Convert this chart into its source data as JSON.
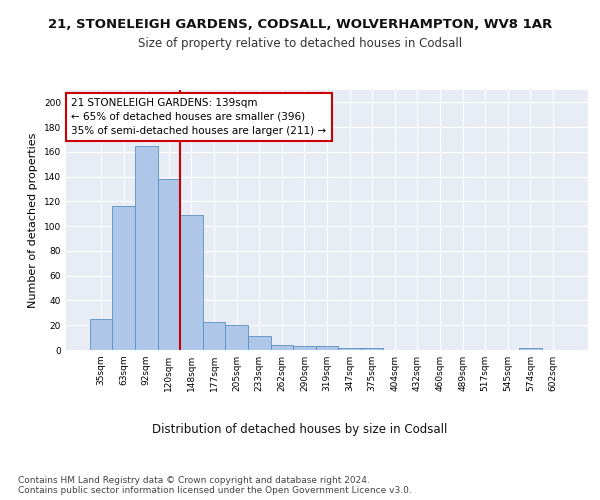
{
  "title_line1": "21, STONELEIGH GARDENS, CODSALL, WOLVERHAMPTON, WV8 1AR",
  "title_line2": "Size of property relative to detached houses in Codsall",
  "xlabel": "Distribution of detached houses by size in Codsall",
  "ylabel": "Number of detached properties",
  "bar_labels": [
    "35sqm",
    "63sqm",
    "92sqm",
    "120sqm",
    "148sqm",
    "177sqm",
    "205sqm",
    "233sqm",
    "262sqm",
    "290sqm",
    "319sqm",
    "347sqm",
    "375sqm",
    "404sqm",
    "432sqm",
    "460sqm",
    "489sqm",
    "517sqm",
    "545sqm",
    "574sqm",
    "602sqm"
  ],
  "bar_values": [
    25,
    116,
    165,
    138,
    109,
    23,
    20,
    11,
    4,
    3,
    3,
    2,
    2,
    0,
    0,
    0,
    0,
    0,
    0,
    2,
    0
  ],
  "bar_color": "#aec6e8",
  "bar_edge_color": "#5a8fc2",
  "bg_color": "#e8ecf5",
  "grid_color": "#ffffff",
  "vline_x": 3.5,
  "vline_color": "#cc0000",
  "annotation_text": "21 STONELEIGH GARDENS: 139sqm\n← 65% of detached houses are smaller (396)\n35% of semi-detached houses are larger (211) →",
  "annotation_box_color": "#ffffff",
  "annotation_box_edge": "#cc0000",
  "ylim": [
    0,
    210
  ],
  "yticks": [
    0,
    20,
    40,
    60,
    80,
    100,
    120,
    140,
    160,
    180,
    200
  ],
  "footnote": "Contains HM Land Registry data © Crown copyright and database right 2024.\nContains public sector information licensed under the Open Government Licence v3.0.",
  "title_fontsize": 9.5,
  "subtitle_fontsize": 8.5,
  "xlabel_fontsize": 8.5,
  "ylabel_fontsize": 8.0,
  "annotation_fontsize": 7.5,
  "footnote_fontsize": 6.5,
  "tick_fontsize": 6.5
}
